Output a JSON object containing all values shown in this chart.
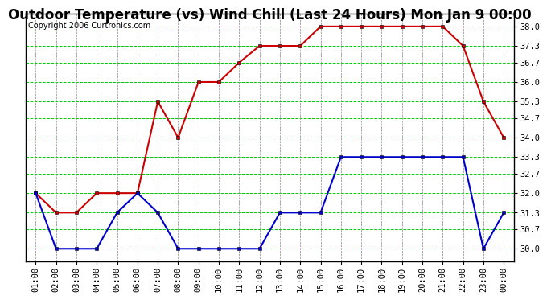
{
  "title": "Outdoor Temperature (vs) Wind Chill (Last 24 Hours) Mon Jan 9 00:00",
  "copyright": "Copyright 2006 Curtronics.com",
  "hours": [
    "01:00",
    "02:00",
    "03:00",
    "04:00",
    "05:00",
    "06:00",
    "07:00",
    "08:00",
    "09:00",
    "10:00",
    "11:00",
    "12:00",
    "13:00",
    "14:00",
    "15:00",
    "16:00",
    "17:00",
    "18:00",
    "19:00",
    "20:00",
    "21:00",
    "22:00",
    "23:00",
    "00:00"
  ],
  "temp": [
    32.0,
    31.3,
    31.3,
    32.0,
    32.0,
    32.0,
    35.3,
    34.0,
    36.0,
    36.0,
    36.7,
    37.3,
    37.3,
    37.3,
    38.0,
    38.0,
    38.0,
    38.0,
    38.0,
    38.0,
    38.0,
    37.3,
    35.3,
    34.0
  ],
  "windchill": [
    32.0,
    30.0,
    30.0,
    30.0,
    31.3,
    32.0,
    31.3,
    30.0,
    30.0,
    30.0,
    30.0,
    30.0,
    31.3,
    31.3,
    31.3,
    33.3,
    33.3,
    33.3,
    33.3,
    33.3,
    33.3,
    33.3,
    30.0,
    31.3
  ],
  "temp_color": "#cc0000",
  "windchill_color": "#0000cc",
  "bg_color": "#ffffff",
  "grid_h_color": "#00cc00",
  "grid_v_color": "#888888",
  "grid_linestyle": "--",
  "ymin": 29.55,
  "ymax": 38.45,
  "yticks": [
    30.0,
    30.7,
    31.3,
    32.0,
    32.7,
    33.3,
    34.0,
    34.7,
    35.3,
    36.0,
    36.7,
    37.3,
    38.0
  ],
  "title_fontsize": 12,
  "copyright_fontsize": 7,
  "tick_fontsize": 7.5,
  "markersize": 3,
  "linewidth": 1.5
}
